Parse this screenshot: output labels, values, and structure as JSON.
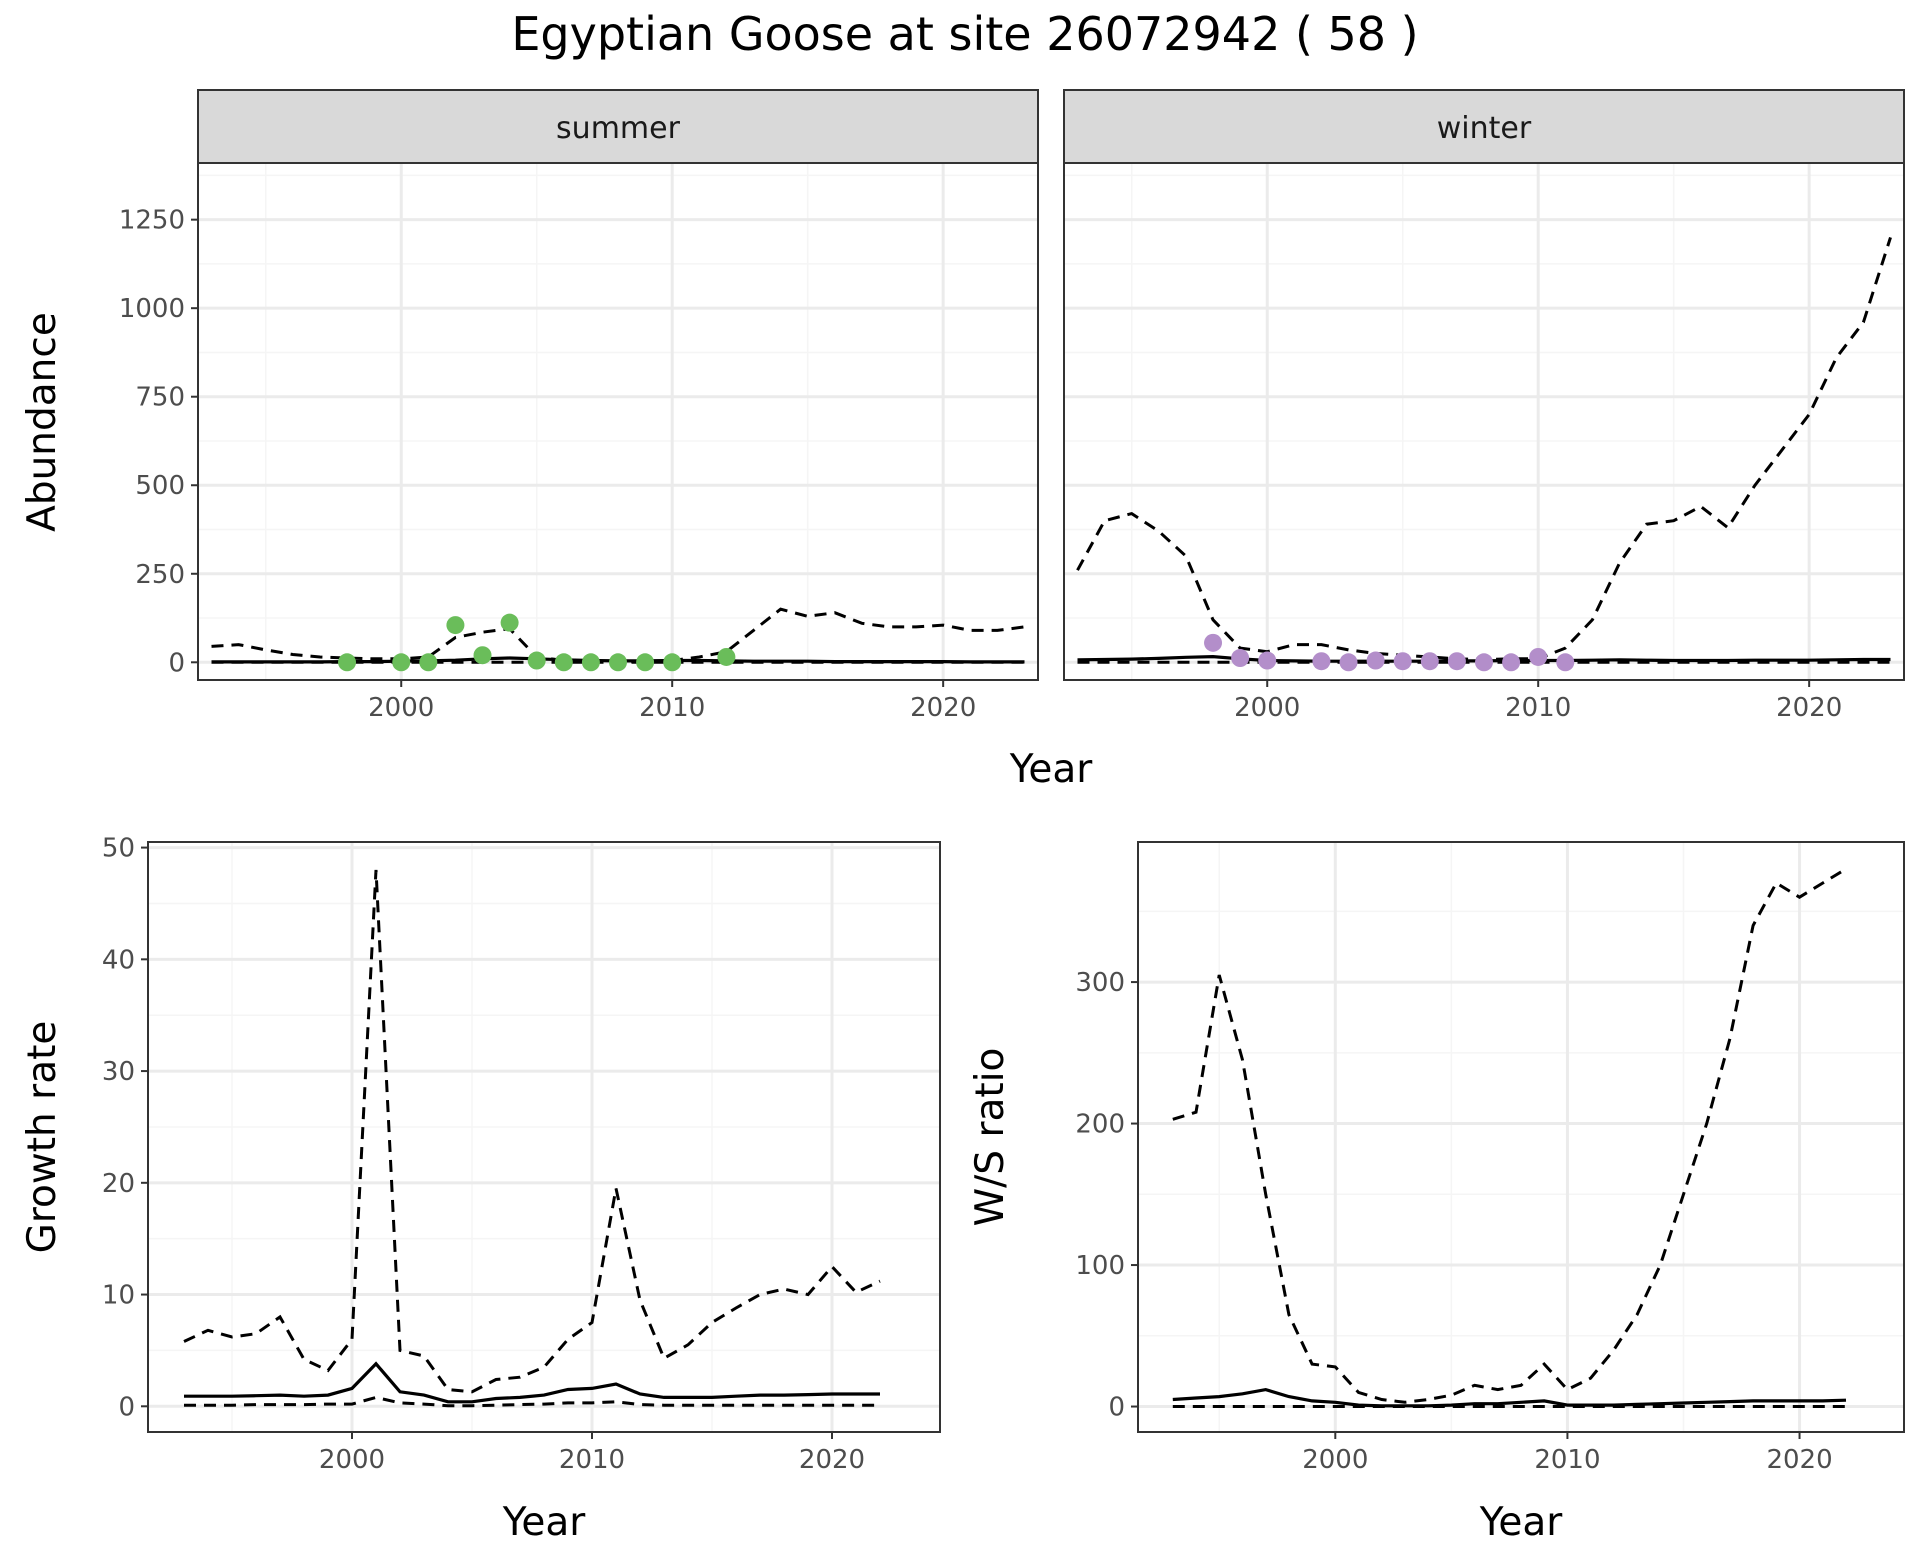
{
  "title": "Egyptian Goose at site 26072942 ( 58 )",
  "colors": {
    "summer_points": "#6ABD5A",
    "winter_points": "#B38ECA",
    "lines": "#000000",
    "grid_major": "#EBEBEB",
    "grid_minor": "#F5F5F5",
    "strip_fill": "#D9D9D9"
  },
  "chart_data": [
    {
      "id": "abundance",
      "type": "line",
      "facets": [
        "summer",
        "winter"
      ],
      "xlabel": "Year",
      "ylabel": "Abundance",
      "xlim": [
        1992.5,
        2023.5
      ],
      "ylim": [
        -50,
        1410
      ],
      "xticks": [
        2000,
        2010,
        2020
      ],
      "yticks": [
        0,
        250,
        500,
        750,
        1000,
        1250
      ],
      "grid": true,
      "panels": {
        "summer": {
          "x": [
            1993,
            1994,
            1995,
            1996,
            1997,
            1998,
            1999,
            2000,
            2001,
            2002,
            2003,
            2004,
            2005,
            2006,
            2007,
            2008,
            2009,
            2010,
            2011,
            2012,
            2013,
            2014,
            2015,
            2016,
            2017,
            2018,
            2019,
            2020,
            2021,
            2022,
            2023
          ],
          "estimate": [
            1,
            1,
            1,
            1,
            1,
            2,
            2,
            3,
            4,
            6,
            10,
            12,
            10,
            7,
            5,
            4,
            4,
            5,
            5,
            4,
            3,
            3,
            3,
            2,
            2,
            2,
            2,
            2,
            1,
            1,
            1
          ],
          "lower": [
            0,
            0,
            0,
            0,
            0,
            0,
            0,
            0,
            0,
            0,
            0,
            0,
            0,
            0,
            0,
            0,
            0,
            0,
            0,
            0,
            0,
            0,
            0,
            0,
            0,
            0,
            0,
            0,
            0,
            0,
            0
          ],
          "upper": [
            45,
            50,
            35,
            22,
            15,
            12,
            10,
            10,
            15,
            70,
            85,
            95,
            15,
            5,
            4,
            3,
            3,
            5,
            15,
            30,
            90,
            150,
            130,
            140,
            110,
            100,
            100,
            105,
            90,
            90,
            100
          ],
          "points_x": [
            1998,
            2000,
            2001,
            2002,
            2003,
            2004,
            2005,
            2006,
            2007,
            2008,
            2009,
            2010,
            2012
          ],
          "points_y": [
            0,
            0,
            0,
            105,
            20,
            112,
            5,
            0,
            0,
            0,
            0,
            0,
            15
          ]
        },
        "winter": {
          "x": [
            1993,
            1994,
            1995,
            1996,
            1997,
            1998,
            1999,
            2000,
            2001,
            2002,
            2003,
            2004,
            2005,
            2006,
            2007,
            2008,
            2009,
            2010,
            2011,
            2012,
            2013,
            2014,
            2015,
            2016,
            2017,
            2018,
            2019,
            2020,
            2021,
            2022,
            2023
          ],
          "estimate": [
            7,
            8,
            9,
            11,
            14,
            16,
            10,
            5,
            4,
            3,
            3,
            3,
            3,
            3,
            4,
            4,
            5,
            5,
            5,
            6,
            7,
            6,
            5,
            5,
            5,
            6,
            6,
            6,
            7,
            8,
            8
          ],
          "lower": [
            0,
            0,
            0,
            0,
            0,
            0,
            0,
            0,
            0,
            0,
            0,
            0,
            0,
            0,
            0,
            0,
            0,
            0,
            0,
            0,
            0,
            0,
            0,
            0,
            0,
            0,
            0,
            0,
            0,
            0,
            0
          ],
          "upper": [
            260,
            400,
            420,
            370,
            300,
            120,
            40,
            30,
            50,
            50,
            35,
            25,
            20,
            15,
            10,
            8,
            10,
            10,
            40,
            120,
            280,
            390,
            400,
            440,
            380,
            500,
            600,
            700,
            860,
            960,
            1200
          ],
          "points_x": [
            1998,
            1999,
            2000,
            2002,
            2003,
            2004,
            2005,
            2006,
            2007,
            2008,
            2009,
            2010,
            2011
          ],
          "points_y": [
            55,
            12,
            5,
            3,
            0,
            5,
            3,
            3,
            3,
            0,
            0,
            15,
            0
          ]
        }
      }
    },
    {
      "id": "growth",
      "type": "line",
      "xlabel": "Year",
      "ylabel": "Growth rate",
      "xlim": [
        1991.5,
        2024.5
      ],
      "ylim": [
        -2.3,
        50.5
      ],
      "xticks": [
        2000,
        2010,
        2020
      ],
      "yticks": [
        0,
        10,
        20,
        30,
        40,
        50
      ],
      "grid": true,
      "x": [
        1993,
        1994,
        1995,
        1996,
        1997,
        1998,
        1999,
        2000,
        2001,
        2002,
        2003,
        2004,
        2005,
        2006,
        2007,
        2008,
        2009,
        2010,
        2011,
        2012,
        2013,
        2014,
        2015,
        2016,
        2017,
        2018,
        2019,
        2020,
        2021,
        2022
      ],
      "estimate": [
        0.9,
        0.9,
        0.9,
        0.95,
        1.0,
        0.9,
        1.0,
        1.6,
        3.8,
        1.3,
        1.0,
        0.4,
        0.4,
        0.7,
        0.8,
        1.0,
        1.5,
        1.6,
        2.0,
        1.1,
        0.8,
        0.8,
        0.8,
        0.9,
        1.0,
        1.0,
        1.05,
        1.1,
        1.1,
        1.1
      ],
      "lower": [
        0.1,
        0.1,
        0.1,
        0.15,
        0.15,
        0.15,
        0.2,
        0.2,
        0.8,
        0.3,
        0.2,
        0.05,
        0.05,
        0.1,
        0.15,
        0.2,
        0.3,
        0.3,
        0.4,
        0.15,
        0.1,
        0.1,
        0.1,
        0.1,
        0.1,
        0.1,
        0.1,
        0.1,
        0.1,
        0.1
      ],
      "upper": [
        5.8,
        6.8,
        6.2,
        6.5,
        8.0,
        4.2,
        3.2,
        6.0,
        48,
        5.0,
        4.5,
        1.5,
        1.3,
        2.4,
        2.6,
        3.5,
        6.0,
        7.5,
        19.5,
        9.5,
        4.3,
        5.5,
        7.5,
        8.8,
        10.0,
        10.5,
        10.0,
        12.5,
        10.2,
        11.2
      ]
    },
    {
      "id": "ws_ratio",
      "type": "line",
      "xlabel": "Year",
      "ylabel": "W/S ratio",
      "xlim": [
        1991.5,
        2024.5
      ],
      "ylim": [
        -18,
        399
      ],
      "xticks": [
        2000,
        2010,
        2020
      ],
      "yticks": [
        0,
        100,
        200,
        300
      ],
      "grid": true,
      "x": [
        1993,
        1994,
        1995,
        1996,
        1997,
        1998,
        1999,
        2000,
        2001,
        2002,
        2003,
        2004,
        2005,
        2006,
        2007,
        2008,
        2009,
        2010,
        2011,
        2012,
        2013,
        2014,
        2015,
        2016,
        2017,
        2018,
        2019,
        2020,
        2021,
        2022
      ],
      "estimate": [
        5,
        6,
        7,
        9,
        12,
        7,
        4,
        3,
        1,
        0.5,
        0.5,
        0.5,
        1,
        2,
        2,
        3,
        4,
        1,
        1,
        1,
        1.5,
        2,
        2.5,
        3,
        3.5,
        4,
        4,
        4,
        4,
        4.5
      ],
      "lower": [
        0,
        0,
        0,
        0,
        0,
        0,
        0,
        0,
        0,
        0,
        0,
        0,
        0,
        0,
        0,
        0,
        0,
        0,
        0,
        0,
        0,
        0,
        0,
        0,
        0,
        0,
        0,
        0,
        0,
        0
      ],
      "upper": [
        203,
        208,
        305,
        245,
        150,
        65,
        30,
        28,
        10,
        5,
        3,
        5,
        8,
        15,
        12,
        15,
        30,
        12,
        20,
        40,
        65,
        100,
        150,
        200,
        260,
        340,
        370,
        360,
        370,
        380
      ]
    }
  ]
}
